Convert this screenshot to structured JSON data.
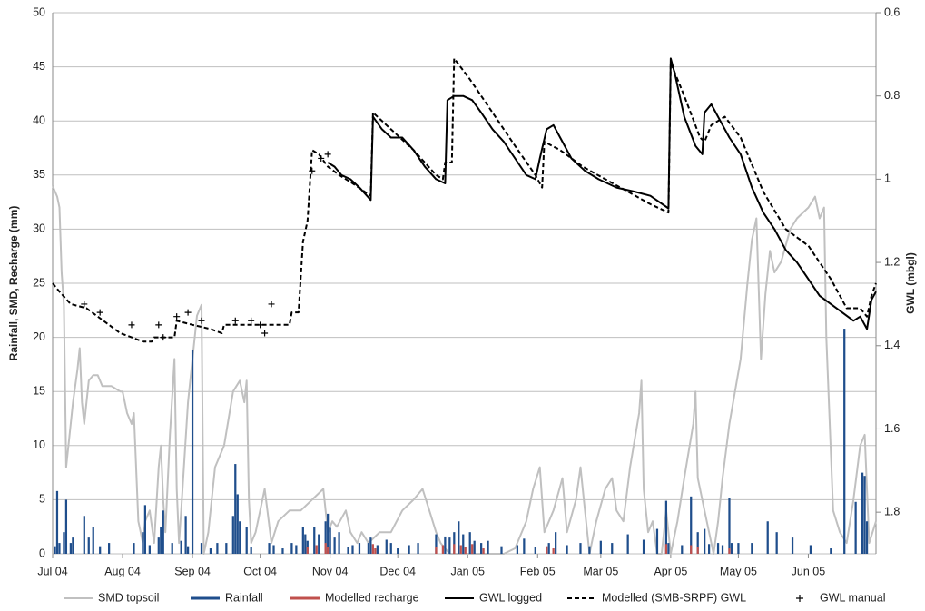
{
  "chart_data": {
    "type": "combo",
    "y_label": "Rainfall, SMD, Recharge (mm)",
    "y2_label": "GWL (mbgl)",
    "xlim": [
      0,
      365
    ],
    "xticks": [
      {
        "value": 0,
        "label": "Jul 04"
      },
      {
        "value": 31,
        "label": "Aug 04"
      },
      {
        "value": 62,
        "label": "Sep 04"
      },
      {
        "value": 92,
        "label": "Oct 04"
      },
      {
        "value": 123,
        "label": "Nov 04"
      },
      {
        "value": 153,
        "label": "Dec 04"
      },
      {
        "value": 184,
        "label": "Jan 05"
      },
      {
        "value": 215,
        "label": "Feb 05"
      },
      {
        "value": 243,
        "label": "Mar 05"
      },
      {
        "value": 274,
        "label": "Apr 05"
      },
      {
        "value": 304,
        "label": "May 05"
      },
      {
        "value": 335,
        "label": "Jun 05"
      }
    ],
    "ylim": [
      0,
      50
    ],
    "yticks": [
      0,
      5,
      10,
      15,
      20,
      25,
      30,
      35,
      40,
      45,
      50
    ],
    "y2lim": [
      1.9,
      0.6
    ],
    "y2ticks": [
      0.6,
      0.8,
      1,
      1.2,
      1.4,
      1.6,
      1.8
    ],
    "grid": true,
    "legend": "bottom",
    "series": [
      {
        "name": "SMD topsoil",
        "type": "line",
        "color": "#c0c0c0",
        "width": 2,
        "x": [
          0,
          2,
          3,
          4,
          5,
          6,
          7,
          9,
          11,
          12,
          13,
          14,
          15,
          16,
          18,
          20,
          22,
          26,
          30,
          31,
          33,
          35,
          36,
          38,
          40,
          41,
          43,
          45,
          47,
          48,
          49,
          50,
          52,
          54,
          55,
          56,
          57,
          60,
          64,
          66,
          67,
          69,
          72,
          76,
          80,
          83,
          85,
          86,
          87,
          88,
          90,
          94,
          97,
          100,
          105,
          110,
          115,
          120,
          122,
          124,
          126,
          130,
          132,
          135,
          137,
          140,
          145,
          150,
          155,
          160,
          164,
          167,
          170,
          172,
          176,
          180,
          185,
          190,
          200,
          205,
          210,
          213,
          216,
          218,
          222,
          226,
          228,
          232,
          234,
          236,
          238,
          241,
          245,
          248,
          250,
          253,
          256,
          260,
          261,
          262,
          264,
          266,
          268,
          270,
          272,
          274,
          277,
          280,
          284,
          285,
          286,
          289,
          292,
          293,
          295,
          297,
          300,
          305,
          308,
          310,
          312,
          314,
          316,
          318,
          320,
          323,
          327,
          330,
          335,
          338,
          340,
          342,
          343,
          346,
          349,
          352,
          355,
          358,
          360,
          362,
          365
        ],
        "values": [
          34,
          33,
          32,
          26,
          23,
          8,
          10,
          14,
          17,
          19,
          14,
          12,
          14,
          16,
          16.5,
          16.5,
          15.5,
          15.5,
          15,
          15,
          13,
          12,
          13,
          3,
          1,
          3,
          4,
          1,
          8,
          10,
          5,
          2,
          11,
          18,
          6,
          1,
          4,
          14,
          22,
          23,
          0,
          2,
          8,
          10,
          15,
          16,
          14,
          16,
          5,
          1,
          2,
          6,
          1,
          3,
          4,
          4,
          5,
          6,
          2,
          3,
          2.5,
          4,
          2,
          1,
          2,
          1,
          2,
          2,
          4,
          5,
          6,
          4,
          2,
          1,
          0,
          0,
          0,
          0,
          0,
          0.5,
          3,
          6,
          8,
          2,
          4,
          7,
          2,
          5,
          8,
          4,
          0,
          3,
          6,
          7,
          4,
          3,
          8,
          13,
          16,
          6,
          2,
          3,
          0,
          0,
          4,
          0,
          3,
          7,
          12,
          15,
          7,
          4,
          1,
          0,
          3,
          7,
          12,
          18,
          25,
          29,
          31,
          18,
          24,
          28,
          26,
          27,
          30,
          31,
          32,
          33,
          31,
          32,
          20,
          4,
          2,
          1,
          5,
          10,
          11,
          1,
          3
        ]
      },
      {
        "name": "Rainfall",
        "type": "bar",
        "color": "#1f4e8c",
        "x": [
          1,
          2,
          3,
          5,
          6,
          8,
          9,
          14,
          16,
          18,
          21,
          25,
          36,
          40,
          41,
          43,
          47,
          48,
          49,
          53,
          57,
          59,
          60,
          62,
          66,
          70,
          73,
          77,
          80,
          81,
          82,
          83,
          86,
          88,
          96,
          98,
          102,
          106,
          108,
          111,
          112,
          113,
          116,
          118,
          121,
          122,
          123,
          125,
          127,
          131,
          133,
          136,
          140,
          141,
          144,
          148,
          150,
          153,
          158,
          162,
          170,
          174,
          176,
          178,
          180,
          182,
          185,
          187,
          190,
          193,
          199,
          206,
          209,
          214,
          220,
          223,
          228,
          234,
          238,
          243,
          248,
          255,
          262,
          268,
          272,
          273,
          279,
          283,
          286,
          289,
          291,
          295,
          297,
          300,
          301,
          304,
          310,
          317,
          321,
          328,
          336,
          345,
          351,
          356,
          359,
          360,
          361
        ],
        "values": [
          0.7,
          5.8,
          1,
          2,
          5,
          1,
          1.5,
          3.5,
          1.5,
          2.5,
          0.7,
          1,
          1,
          2,
          4.5,
          0.8,
          1.5,
          2.5,
          4,
          1,
          1.2,
          3.5,
          0.7,
          18.8,
          1,
          0.5,
          1,
          1,
          3.5,
          8.3,
          5.5,
          3,
          2.5,
          0.6,
          1,
          0.8,
          0.5,
          1,
          0.8,
          2.5,
          1.8,
          1.2,
          2.5,
          1.8,
          3,
          3.7,
          2.4,
          1.5,
          2,
          0.6,
          0.8,
          1,
          1,
          1.5,
          0.8,
          1.3,
          1,
          0.5,
          0.8,
          1,
          1.8,
          1.6,
          1.5,
          2,
          3,
          1.8,
          2,
          1.2,
          1,
          1.2,
          0.7,
          0.8,
          1.4,
          0.6,
          1,
          2,
          0.8,
          1,
          0.7,
          1.2,
          1,
          1.8,
          1.3,
          2.3,
          4.9,
          1,
          0.8,
          5.3,
          2,
          2.3,
          0.9,
          1,
          0.8,
          5.2,
          1,
          1,
          1,
          3,
          2,
          1.5,
          0.8,
          0.5,
          20.8,
          4.8,
          7.5,
          7.2,
          3
        ]
      },
      {
        "name": "Modelled recharge",
        "type": "bar",
        "color": "#c0504d",
        "x": [
          113,
          117,
          121,
          122,
          142,
          143,
          170,
          173,
          178,
          181,
          183,
          186,
          191,
          219,
          222,
          272,
          283,
          286,
          300
        ],
        "values": [
          0.6,
          0.8,
          1,
          0.6,
          0.9,
          0.5,
          0.6,
          0.8,
          0.9,
          0.8,
          0.6,
          0.9,
          0.5,
          0.7,
          0.5,
          0.9,
          0.8,
          0.6,
          0.5
        ]
      },
      {
        "name": "GWL logged",
        "type": "line",
        "axis": "y2",
        "color": "#000000",
        "width": 2,
        "x": [
          122,
          125,
          128,
          132,
          136,
          141,
          142,
          146,
          150,
          155,
          160,
          165,
          170,
          174,
          175,
          178,
          182,
          186,
          190,
          195,
          200,
          205,
          210,
          214,
          216,
          219,
          222,
          226,
          230,
          236,
          242,
          250,
          258,
          265,
          273,
          274,
          276,
          280,
          285,
          288,
          289,
          292,
          296,
          300,
          305,
          310,
          315,
          320,
          325,
          330,
          335,
          340,
          345,
          350,
          355,
          358,
          361,
          363,
          365
        ],
        "values": [
          0.96,
          0.97,
          0.99,
          1.0,
          1.02,
          1.05,
          0.85,
          0.88,
          0.9,
          0.9,
          0.93,
          0.97,
          1.0,
          1.01,
          0.81,
          0.8,
          0.8,
          0.81,
          0.84,
          0.88,
          0.91,
          0.95,
          0.99,
          1.0,
          0.95,
          0.88,
          0.87,
          0.91,
          0.95,
          0.98,
          1.0,
          1.02,
          1.03,
          1.04,
          1.07,
          0.71,
          0.75,
          0.85,
          0.92,
          0.94,
          0.84,
          0.82,
          0.86,
          0.9,
          0.94,
          1.02,
          1.08,
          1.12,
          1.17,
          1.2,
          1.24,
          1.28,
          1.3,
          1.32,
          1.34,
          1.33,
          1.36,
          1.29,
          1.27
        ]
      },
      {
        "name": "Modelled (SMB-SRPF) GWL",
        "type": "line",
        "axis": "y2",
        "color": "#000000",
        "width": 2,
        "dash": true,
        "x": [
          0,
          3,
          8,
          15,
          20,
          25,
          30,
          35,
          40,
          44,
          45,
          54,
          55,
          62,
          70,
          75,
          76,
          105,
          106,
          109,
          111,
          113,
          115,
          118,
          122,
          127,
          133,
          141,
          142,
          150,
          160,
          170,
          173,
          174,
          177,
          178,
          185,
          195,
          205,
          214,
          217,
          218,
          225,
          235,
          245,
          255,
          265,
          273,
          274,
          280,
          287,
          289,
          292,
          298,
          305,
          315,
          325,
          335,
          345,
          352,
          358,
          361,
          363,
          365
        ],
        "values": [
          1.25,
          1.27,
          1.3,
          1.31,
          1.33,
          1.35,
          1.37,
          1.38,
          1.39,
          1.39,
          1.38,
          1.38,
          1.34,
          1.35,
          1.36,
          1.37,
          1.35,
          1.35,
          1.32,
          1.32,
          1.15,
          1.1,
          0.93,
          0.94,
          0.97,
          0.99,
          1.01,
          1.04,
          0.84,
          0.88,
          0.93,
          0.99,
          1.0,
          0.96,
          0.96,
          0.71,
          0.76,
          0.84,
          0.92,
          0.99,
          1.02,
          0.91,
          0.93,
          0.97,
          1.0,
          1.03,
          1.06,
          1.08,
          0.72,
          0.8,
          0.9,
          0.91,
          0.87,
          0.85,
          0.9,
          1.03,
          1.12,
          1.16,
          1.24,
          1.31,
          1.31,
          1.33,
          1.28,
          1.25
        ]
      },
      {
        "name": "GWL manual",
        "type": "marker",
        "axis": "y2",
        "color": "#000000",
        "x": [
          14,
          21,
          35,
          47,
          49,
          55,
          60,
          66,
          81,
          88,
          92,
          94,
          97,
          115,
          119,
          122
        ],
        "values": [
          1.3,
          1.32,
          1.35,
          1.35,
          1.38,
          1.33,
          1.32,
          1.34,
          1.34,
          1.34,
          1.35,
          1.37,
          1.3,
          0.98,
          0.95,
          0.94
        ]
      }
    ]
  }
}
